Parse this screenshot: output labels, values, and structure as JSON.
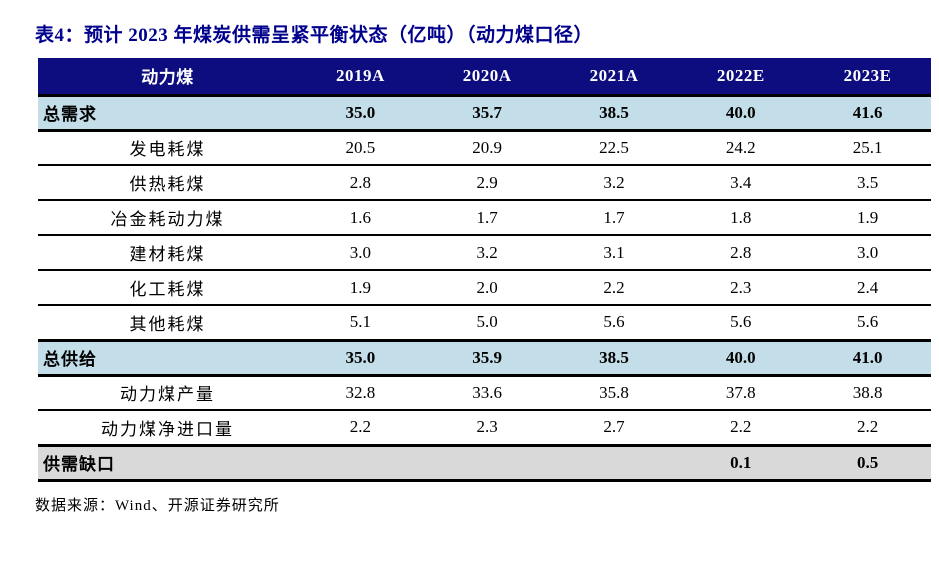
{
  "title": "表4：预计 2023 年煤炭供需呈紧平衡状态（亿吨）（动力煤口径）",
  "source": "数据来源：Wind、开源证券研究所",
  "colors": {
    "title_text": "#00008C",
    "header_bg": "#0D0D80",
    "header_text": "#FFFFFF",
    "highlight_row_bg": "#C3DEE8",
    "gap_row_bg": "#D9D9D9",
    "border": "#000000"
  },
  "table": {
    "header": [
      "动力煤",
      "2019A",
      "2020A",
      "2021A",
      "2022E",
      "2023E"
    ],
    "rows": [
      {
        "label": "总需求",
        "style": "highlight",
        "values": [
          "35.0",
          "35.7",
          "38.5",
          "40.0",
          "41.6"
        ]
      },
      {
        "label": "发电耗煤",
        "style": "normal",
        "values": [
          "20.5",
          "20.9",
          "22.5",
          "24.2",
          "25.1"
        ]
      },
      {
        "label": "供热耗煤",
        "style": "normal",
        "values": [
          "2.8",
          "2.9",
          "3.2",
          "3.4",
          "3.5"
        ]
      },
      {
        "label": "冶金耗动力煤",
        "style": "normal",
        "values": [
          "1.6",
          "1.7",
          "1.7",
          "1.8",
          "1.9"
        ]
      },
      {
        "label": "建材耗煤",
        "style": "normal",
        "values": [
          "3.0",
          "3.2",
          "3.1",
          "2.8",
          "3.0"
        ]
      },
      {
        "label": "化工耗煤",
        "style": "normal",
        "values": [
          "1.9",
          "2.0",
          "2.2",
          "2.3",
          "2.4"
        ]
      },
      {
        "label": "其他耗煤",
        "style": "normal",
        "values": [
          "5.1",
          "5.0",
          "5.6",
          "5.6",
          "5.6"
        ]
      },
      {
        "label": "总供给",
        "style": "highlight",
        "values": [
          "35.0",
          "35.9",
          "38.5",
          "40.0",
          "41.0"
        ]
      },
      {
        "label": "动力煤产量",
        "style": "normal",
        "values": [
          "32.8",
          "33.6",
          "35.8",
          "37.8",
          "38.8"
        ]
      },
      {
        "label": "动力煤净进口量",
        "style": "normal",
        "values": [
          "2.2",
          "2.3",
          "2.7",
          "2.2",
          "2.2"
        ]
      },
      {
        "label": "供需缺口",
        "style": "gap",
        "values": [
          "",
          "",
          "",
          "0.1",
          "0.5"
        ]
      }
    ]
  }
}
